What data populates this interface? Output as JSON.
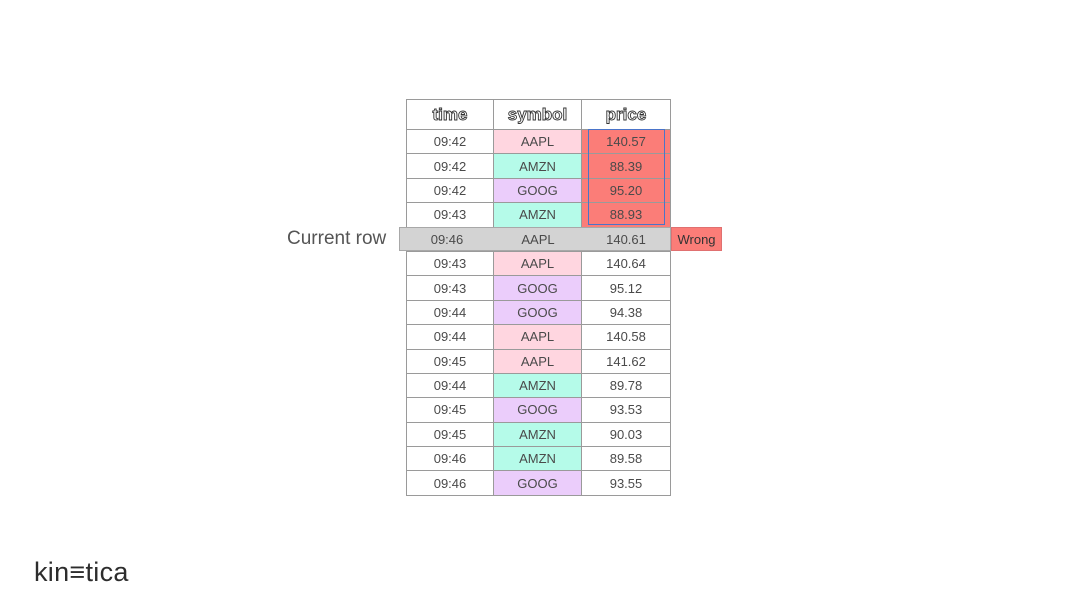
{
  "table": {
    "headers": [
      "time",
      "symbol",
      "price"
    ],
    "rows": [
      {
        "time": "09:42",
        "symbol": "AAPL",
        "price": "140.57",
        "flag": "wrong"
      },
      {
        "time": "09:42",
        "symbol": "AMZN",
        "price": "88.39",
        "flag": "wrong"
      },
      {
        "time": "09:42",
        "symbol": "GOOG",
        "price": "95.20",
        "flag": "wrong"
      },
      {
        "time": "09:43",
        "symbol": "AMZN",
        "price": "88.93",
        "flag": "wrong"
      },
      {
        "time": "09:46",
        "symbol": "AAPL",
        "price": "140.61",
        "flag": "current"
      },
      {
        "time": "09:43",
        "symbol": "AAPL",
        "price": "140.64",
        "flag": ""
      },
      {
        "time": "09:43",
        "symbol": "GOOG",
        "price": "95.12",
        "flag": ""
      },
      {
        "time": "09:44",
        "symbol": "GOOG",
        "price": "94.38",
        "flag": ""
      },
      {
        "time": "09:44",
        "symbol": "AAPL",
        "price": "140.58",
        "flag": ""
      },
      {
        "time": "09:45",
        "symbol": "AAPL",
        "price": "141.62",
        "flag": ""
      },
      {
        "time": "09:44",
        "symbol": "AMZN",
        "price": "89.78",
        "flag": ""
      },
      {
        "time": "09:45",
        "symbol": "GOOG",
        "price": "93.53",
        "flag": ""
      },
      {
        "time": "09:45",
        "symbol": "AMZN",
        "price": "90.03",
        "flag": ""
      },
      {
        "time": "09:46",
        "symbol": "AMZN",
        "price": "89.58",
        "flag": ""
      },
      {
        "time": "09:46",
        "symbol": "GOOG",
        "price": "93.55",
        "flag": ""
      }
    ]
  },
  "current_row": {
    "label": "Current row",
    "time": "09:46",
    "symbol": "AAPL",
    "price": "140.61",
    "badge": "Wrong"
  },
  "colors": {
    "AAPL": "#ffd6e0",
    "AMZN": "#b5fbe9",
    "GOOG": "#ebcdfb",
    "wrong": "#fb7d78",
    "current_row": "#d3d3d3",
    "highlight_border": "#4a74c9"
  },
  "logo": {
    "text": "kin≡tica"
  }
}
